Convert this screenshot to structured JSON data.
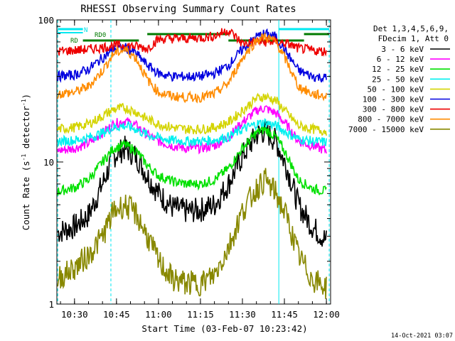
{
  "chart_data": {
    "type": "line",
    "title": "RHESSI Observing Summary Count Rates",
    "xlabel": "Start Time (03-Feb-07 10:23:42)",
    "ylabel": "Count Rate (s⁻¹ detector⁻¹)",
    "ylabel_main": "Count Rate (s",
    "ylabel_sup1": "-1",
    "ylabel_mid": " detector",
    "ylabel_sup2": "-1",
    "ylabel_end": ")",
    "y_scale": "log",
    "ylim": [
      1,
      100
    ],
    "xlim": [
      "10:23:42",
      "12:01:30"
    ],
    "x_ticks": [
      "10:30",
      "10:45",
      "11:00",
      "11:15",
      "11:30",
      "11:45",
      "12:00"
    ],
    "y_ticks": [
      "1",
      "10",
      "100"
    ],
    "legend_header": [
      "Det 1,3,4,5,6,9,",
      "FDecim 1, Att 0"
    ],
    "legend_position": "top-right, outside plot",
    "footer": "14-Oct-2021 03:07",
    "annotations": [
      {
        "text": "N",
        "color": "#00e0e8"
      },
      {
        "text": "RD0",
        "color": "#007a00"
      },
      {
        "text": "RD",
        "color": "#007a00"
      }
    ],
    "series": [
      {
        "name": "3 - 6 keV",
        "color": "#000000",
        "x": [
          "10:24",
          "10:30",
          "10:35",
          "10:40",
          "10:44",
          "10:48",
          "10:52",
          "10:56",
          "11:00",
          "11:05",
          "11:10",
          "11:15",
          "11:20",
          "11:25",
          "11:30",
          "11:35",
          "11:38",
          "11:42",
          "11:46",
          "11:50",
          "11:55",
          "12:00"
        ],
        "y": [
          3.2,
          3.5,
          4.2,
          7,
          11,
          12.5,
          11,
          8,
          6,
          4.8,
          4.5,
          4.6,
          5,
          7,
          11,
          15.5,
          16.5,
          14,
          9,
          5,
          3.5,
          2.8
        ]
      },
      {
        "name": "6 - 12 keV",
        "color": "#ff00ff",
        "x": [
          "10:24",
          "10:30",
          "10:35",
          "10:40",
          "10:44",
          "10:48",
          "10:52",
          "10:56",
          "11:00",
          "11:05",
          "11:10",
          "11:15",
          "11:20",
          "11:25",
          "11:30",
          "11:35",
          "11:38",
          "11:42",
          "11:46",
          "11:50",
          "11:55",
          "12:00"
        ],
        "y": [
          12,
          12.5,
          13.5,
          16,
          18.5,
          19.5,
          18,
          15.5,
          14,
          13,
          12.5,
          12.5,
          13,
          15,
          19,
          23,
          24,
          22,
          18,
          14,
          13,
          12
        ]
      },
      {
        "name": "12 - 25 keV",
        "color": "#00e000",
        "x": [
          "10:24",
          "10:30",
          "10:35",
          "10:40",
          "10:44",
          "10:48",
          "10:52",
          "10:56",
          "11:00",
          "11:05",
          "11:10",
          "11:15",
          "11:20",
          "11:25",
          "11:30",
          "11:35",
          "11:38",
          "11:42",
          "11:46",
          "11:50",
          "11:55",
          "12:00"
        ],
        "y": [
          6.2,
          6.6,
          7.5,
          10,
          12.5,
          13.2,
          12,
          9.5,
          8,
          7.3,
          7,
          7,
          7.5,
          9,
          12.5,
          16,
          17,
          15,
          11,
          7.5,
          6.5,
          6.2
        ]
      },
      {
        "name": "25 - 50 keV",
        "color": "#00f0f0",
        "x": [
          "10:24",
          "10:30",
          "10:35",
          "10:40",
          "10:44",
          "10:48",
          "10:52",
          "10:56",
          "11:00",
          "11:05",
          "11:10",
          "11:15",
          "11:20",
          "11:25",
          "11:30",
          "11:35",
          "11:38",
          "11:42",
          "11:46",
          "11:50",
          "11:55",
          "12:00"
        ],
        "y": [
          14,
          14.2,
          14.8,
          16,
          17.5,
          18,
          17,
          15.5,
          14.8,
          14.2,
          14,
          14,
          14.3,
          15,
          17,
          18.5,
          19,
          18,
          16,
          14.5,
          14,
          13.8
        ]
      },
      {
        "name": "50 - 100 keV",
        "color": "#d4d400",
        "x": [
          "10:24",
          "10:30",
          "10:35",
          "10:40",
          "10:44",
          "10:48",
          "10:52",
          "10:56",
          "11:00",
          "11:05",
          "11:10",
          "11:15",
          "11:20",
          "11:25",
          "11:30",
          "11:35",
          "11:38",
          "11:42",
          "11:46",
          "11:50",
          "11:55",
          "12:00"
        ],
        "y": [
          17,
          17.5,
          18.5,
          21,
          23.5,
          24,
          22.5,
          20,
          18.5,
          17.5,
          17,
          17,
          17.5,
          19,
          23,
          28,
          29,
          27,
          22,
          18,
          17,
          16.5
        ]
      },
      {
        "name": "100 - 300 keV",
        "color": "#0000e0",
        "x": [
          "10:24",
          "10:30",
          "10:35",
          "10:40",
          "10:44",
          "10:48",
          "10:52",
          "10:56",
          "11:00",
          "11:05",
          "11:10",
          "11:15",
          "11:20",
          "11:25",
          "11:30",
          "11:35",
          "11:38",
          "11:42",
          "11:46",
          "11:50",
          "11:55",
          "12:00"
        ],
        "y": [
          40,
          41,
          45,
          54,
          62,
          64,
          58,
          48,
          42,
          40,
          40,
          40,
          42,
          48,
          62,
          76,
          80,
          76,
          58,
          44,
          40,
          39
        ]
      },
      {
        "name": "300 - 800 keV",
        "color": "#ee0000",
        "x": [
          "10:24",
          "10:30",
          "10:35",
          "10:40",
          "10:44",
          "10:48",
          "10:52",
          "10:56",
          "11:00",
          "11:05",
          "11:10",
          "11:15",
          "11:20",
          "11:25",
          "11:30",
          "11:35",
          "11:38",
          "11:42",
          "11:46",
          "11:50",
          "11:55",
          "12:00"
        ],
        "y": [
          60,
          61,
          62,
          64,
          66,
          66,
          65,
          63,
          73,
          74,
          74,
          75,
          77,
          85,
          68,
          70,
          70,
          70,
          68,
          63,
          61,
          60
        ]
      },
      {
        "name": "800 - 7000 keV",
        "color": "#ff8c00",
        "x": [
          "10:24",
          "10:30",
          "10:35",
          "10:40",
          "10:44",
          "10:48",
          "10:52",
          "10:56",
          "11:00",
          "11:05",
          "11:10",
          "11:15",
          "11:20",
          "11:25",
          "11:30",
          "11:35",
          "11:38",
          "11:42",
          "11:46",
          "11:50",
          "11:55",
          "12:00"
        ],
        "y": [
          30,
          31,
          34,
          44,
          58,
          62,
          54,
          38,
          31,
          29,
          28.5,
          28.5,
          30,
          36,
          54,
          72,
          76,
          70,
          50,
          34,
          30,
          29
        ]
      },
      {
        "name": "7000 - 15000 keV",
        "color": "#888800",
        "x": [
          "10:24",
          "10:30",
          "10:35",
          "10:40",
          "10:44",
          "10:48",
          "10:52",
          "10:56",
          "11:00",
          "11:05",
          "11:10",
          "11:15",
          "11:20",
          "11:25",
          "11:30",
          "11:35",
          "11:38",
          "11:42",
          "11:46",
          "11:50",
          "11:55",
          "12:00"
        ],
        "y": [
          1.5,
          1.8,
          2.2,
          3,
          4.5,
          5,
          4.3,
          3,
          2,
          1.5,
          1.4,
          1.4,
          1.6,
          2.5,
          4.5,
          6.5,
          7.5,
          6,
          4,
          2.2,
          1.5,
          1.3
        ]
      }
    ]
  }
}
